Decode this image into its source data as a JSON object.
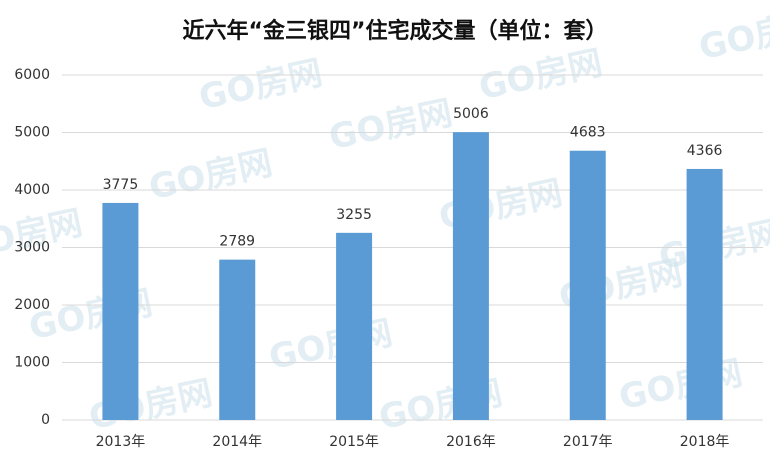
{
  "chart_data": {
    "type": "bar",
    "title": "近六年“金三银四”住宅成交量（单位：套）",
    "categories": [
      "2013年",
      "2014年",
      "2015年",
      "2016年",
      "2017年",
      "2018年"
    ],
    "values": [
      3775,
      2789,
      3255,
      5006,
      4683,
      4366
    ],
    "color": "#5b9bd5",
    "ylim": [
      0,
      6000
    ],
    "yticks": [
      0,
      1000,
      2000,
      3000,
      4000,
      5000,
      6000
    ],
    "grid": true,
    "watermark": "GO房网"
  }
}
